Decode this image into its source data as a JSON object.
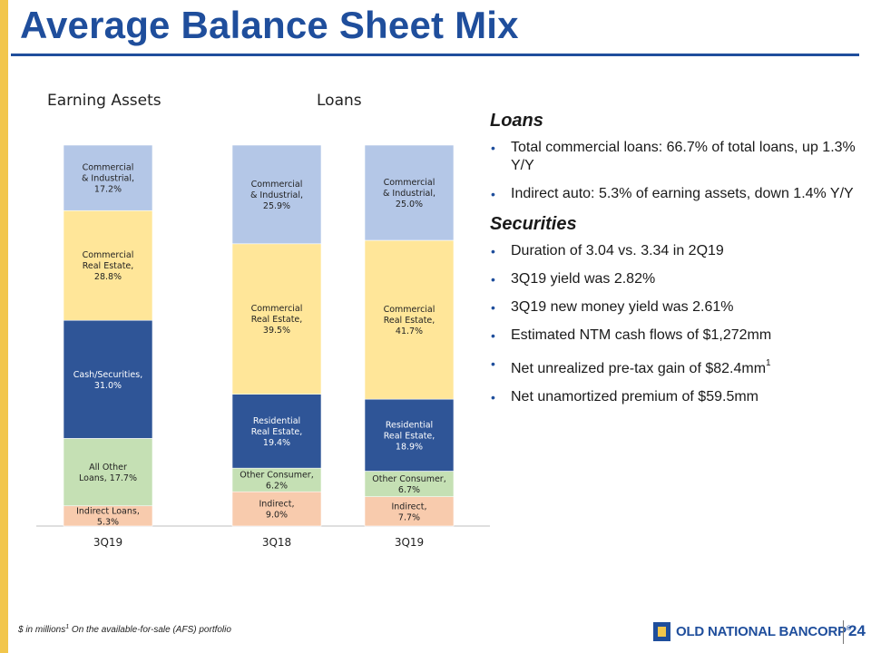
{
  "title": "Average Balance Sheet Mix",
  "colors": {
    "brand_blue": "#1f4e9c",
    "gold": "#f2c64b",
    "commercial_industrial": "#b4c7e7",
    "commercial_real_estate": "#ffe699",
    "cash_securities_residential": "#2f5597",
    "other": "#c5e0b4",
    "indirect": "#f8cbad"
  },
  "chart_data": [
    {
      "type": "bar",
      "stacked": true,
      "title": "Earning Assets",
      "categories": [
        "3Q19"
      ],
      "series": [
        {
          "name": "Indirect Loans",
          "label_lines": [
            "Indirect Loans,",
            "5.3%"
          ],
          "values": [
            5.3
          ],
          "color": "#f8cbad",
          "text_color": "#222222"
        },
        {
          "name": "All Other Loans",
          "label_lines": [
            "All Other",
            "Loans, 17.7%"
          ],
          "values": [
            17.7
          ],
          "color": "#c5e0b4",
          "text_color": "#222222"
        },
        {
          "name": "Cash/Securities",
          "label_lines": [
            "Cash/Securities,",
            "31.0%"
          ],
          "values": [
            31.0
          ],
          "color": "#2f5597",
          "text_color": "#ffffff"
        },
        {
          "name": "Commercial Real Estate",
          "label_lines": [
            "Commercial",
            "Real Estate,",
            "28.8%"
          ],
          "values": [
            28.8
          ],
          "color": "#ffe699",
          "text_color": "#222222"
        },
        {
          "name": "Commercial & Industrial",
          "label_lines": [
            "Commercial",
            "& Industrial,",
            "17.2%"
          ],
          "values": [
            17.2
          ],
          "color": "#b4c7e7",
          "text_color": "#222222"
        }
      ]
    },
    {
      "type": "bar",
      "stacked": true,
      "title": "Loans",
      "categories": [
        "3Q18",
        "3Q19"
      ],
      "series": [
        {
          "name": "Indirect",
          "label_lines_by_bar": [
            [
              "Indirect,",
              "9.0%"
            ],
            [
              "Indirect,",
              "7.7%"
            ]
          ],
          "values": [
            9.0,
            7.7
          ],
          "color": "#f8cbad",
          "text_color": "#222222"
        },
        {
          "name": "Other Consumer",
          "label_lines_by_bar": [
            [
              "Other Consumer,",
              "6.2%"
            ],
            [
              "Other Consumer,",
              "6.7%"
            ]
          ],
          "values": [
            6.2,
            6.7
          ],
          "color": "#c5e0b4",
          "text_color": "#222222"
        },
        {
          "name": "Residential Real Estate",
          "label_lines_by_bar": [
            [
              "Residential",
              "Real Estate,",
              "19.4%"
            ],
            [
              "Residential",
              "Real Estate,",
              "18.9%"
            ]
          ],
          "values": [
            19.4,
            18.9
          ],
          "color": "#2f5597",
          "text_color": "#ffffff"
        },
        {
          "name": "Commercial Real Estate",
          "label_lines_by_bar": [
            [
              "Commercial",
              "Real Estate,",
              "39.5%"
            ],
            [
              "Commercial",
              "Real Estate,",
              "41.7%"
            ]
          ],
          "values": [
            39.5,
            41.7
          ],
          "color": "#ffe699",
          "text_color": "#222222"
        },
        {
          "name": "Commercial & Industrial",
          "label_lines_by_bar": [
            [
              "Commercial",
              "& Industrial,",
              "25.9%"
            ],
            [
              "Commercial",
              "& Industrial,",
              "25.0%"
            ]
          ],
          "values": [
            25.9,
            25.0
          ],
          "color": "#b4c7e7",
          "text_color": "#222222"
        }
      ]
    }
  ],
  "loans_section": {
    "heading": "Loans",
    "bullets": [
      "Total commercial loans: 66.7% of total loans, up 1.3% Y/Y",
      "Indirect auto: 5.3% of earning assets, down 1.4% Y/Y"
    ]
  },
  "securities_section": {
    "heading": "Securities",
    "bullets": [
      {
        "text": "Duration of 3.04 vs. 3.34 in 2Q19"
      },
      {
        "text": "3Q19 yield was 2.82%"
      },
      {
        "text": "3Q19 new money yield was 2.61%"
      },
      {
        "text": "Estimated NTM cash flows of $1,272mm"
      },
      {
        "text": "Net unrealized pre-tax gain of $82.4mm",
        "sup": "1"
      },
      {
        "text": "Net unamortized premium of $59.5mm"
      }
    ]
  },
  "bullet_glyph": "•",
  "footnote": {
    "text": "$ in millions",
    "sup": "1",
    "note": " On the available-for-sale (AFS) portfolio"
  },
  "logo": {
    "text": "OLD NATIONAL BANCORP",
    "reg": "®",
    "icon": "old-national-logo-icon"
  },
  "page_number": "24"
}
